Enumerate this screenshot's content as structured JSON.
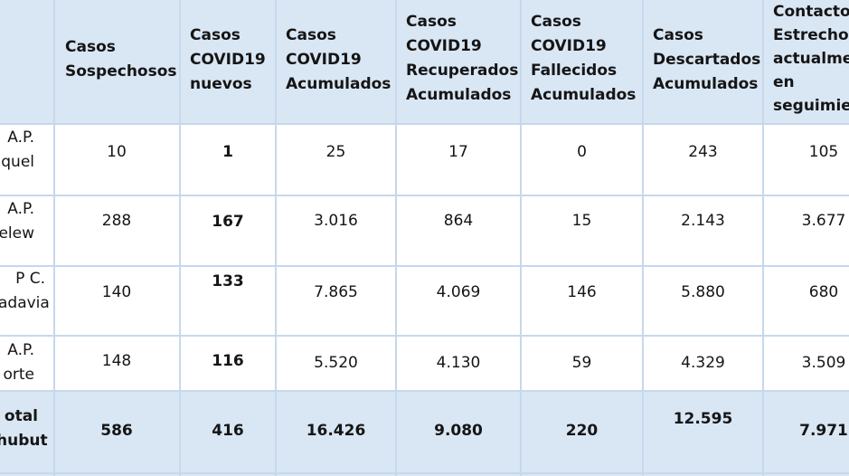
{
  "headers": {
    "sospechosos": [
      "Casos",
      "Sospechosos"
    ],
    "nuevos": [
      "Casos",
      "COVID19",
      "nuevos"
    ],
    "acumulados": [
      "Casos",
      "COVID19",
      "Acumulados"
    ],
    "recuperados": [
      "Casos",
      "COVID19",
      "Recuperados",
      "Acumulados"
    ],
    "fallecidos": [
      "Casos",
      "COVID19",
      "Fallecidos",
      "Acumulados"
    ],
    "descartados": [
      "Casos",
      "Descartados",
      "Acumulados"
    ],
    "contactos": [
      "Contactos",
      "Estrechos",
      "actualme",
      "en",
      "seguimien"
    ]
  },
  "rows": [
    {
      "label": [
        "A.P.",
        "quel"
      ],
      "values": [
        "10",
        "1",
        "25",
        "17",
        "0",
        "243",
        "105"
      ]
    },
    {
      "label": [
        "A.P.",
        "elew"
      ],
      "values": [
        "288",
        "167",
        "3.016",
        "864",
        "15",
        "2.143",
        "3.677"
      ]
    },
    {
      "label": [
        "P C.",
        "adavia"
      ],
      "values": [
        "140",
        "133",
        "7.865",
        "4.069",
        "146",
        "5.880",
        "680"
      ]
    },
    {
      "label": [
        "A.P.",
        "orte"
      ],
      "values": [
        "148",
        "116",
        "5.520",
        "4.130",
        "59",
        "4.329",
        "3.509"
      ]
    }
  ],
  "total": {
    "label": [
      "otal",
      "hubut"
    ],
    "values": [
      "586",
      "416",
      "16.426",
      "9.080",
      "220",
      "12.595",
      "7.971"
    ]
  }
}
